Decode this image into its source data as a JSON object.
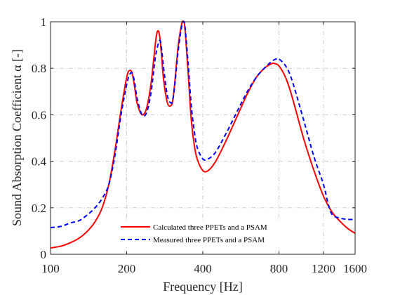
{
  "chart_data": {
    "type": "line",
    "title": "",
    "xlabel": "Frequency [Hz]",
    "ylabel": "Sound Absorption Coefficient α [-]",
    "xscale": "log",
    "xlim": [
      100,
      1600
    ],
    "ylim": [
      0,
      1
    ],
    "xticks": [
      100,
      200,
      400,
      800,
      1200,
      1600
    ],
    "xtick_labels": [
      "100",
      "200",
      "400",
      "800",
      "1200",
      "1600"
    ],
    "yticks": [
      0,
      0.2,
      0.4,
      0.6,
      0.8,
      1
    ],
    "ytick_labels": [
      "0",
      "0.2",
      "0.4",
      "0.6",
      "0.8",
      "1"
    ],
    "grid": true,
    "legend_position": "bottom-center",
    "series": [
      {
        "name": "Calculated three PPETs and a PSAM",
        "color": "#ff0000",
        "style": "solid",
        "x": [
          100,
          110,
          120,
          130,
          140,
          150,
          160,
          170,
          180,
          190,
          200,
          205,
          210,
          215,
          220,
          230,
          240,
          250,
          260,
          265,
          270,
          275,
          280,
          290,
          300,
          305,
          310,
          320,
          330,
          335,
          340,
          350,
          360,
          370,
          380,
          400,
          420,
          450,
          500,
          550,
          600,
          650,
          700,
          750,
          770,
          800,
          850,
          900,
          1000,
          1100,
          1200,
          1300,
          1400,
          1500,
          1600
        ],
        "y": [
          0.027,
          0.035,
          0.05,
          0.07,
          0.1,
          0.14,
          0.2,
          0.3,
          0.45,
          0.62,
          0.76,
          0.79,
          0.78,
          0.72,
          0.65,
          0.6,
          0.63,
          0.74,
          0.91,
          0.96,
          0.94,
          0.85,
          0.75,
          0.65,
          0.64,
          0.67,
          0.74,
          0.9,
          0.99,
          1.0,
          0.97,
          0.78,
          0.58,
          0.47,
          0.41,
          0.36,
          0.36,
          0.4,
          0.5,
          0.6,
          0.69,
          0.76,
          0.8,
          0.82,
          0.82,
          0.81,
          0.76,
          0.68,
          0.5,
          0.36,
          0.25,
          0.18,
          0.14,
          0.11,
          0.09
        ]
      },
      {
        "name": "Measured three PPETs and a PSAM",
        "color": "#0000ff",
        "style": "dashed",
        "x": [
          100,
          110,
          120,
          130,
          140,
          150,
          160,
          170,
          180,
          190,
          200,
          205,
          210,
          215,
          220,
          230,
          240,
          250,
          260,
          270,
          275,
          280,
          290,
          300,
          305,
          310,
          320,
          330,
          335,
          340,
          350,
          360,
          370,
          380,
          400,
          420,
          450,
          500,
          550,
          600,
          650,
          700,
          750,
          780,
          800,
          850,
          900,
          1000,
          1100,
          1200,
          1250,
          1300,
          1400,
          1500,
          1600
        ],
        "y": [
          0.115,
          0.12,
          0.135,
          0.145,
          0.17,
          0.2,
          0.24,
          0.3,
          0.43,
          0.6,
          0.73,
          0.77,
          0.78,
          0.74,
          0.67,
          0.6,
          0.61,
          0.7,
          0.85,
          0.92,
          0.88,
          0.8,
          0.68,
          0.65,
          0.67,
          0.73,
          0.88,
          0.98,
          1.0,
          0.98,
          0.82,
          0.64,
          0.53,
          0.46,
          0.41,
          0.41,
          0.44,
          0.53,
          0.62,
          0.7,
          0.76,
          0.8,
          0.83,
          0.84,
          0.84,
          0.81,
          0.75,
          0.58,
          0.42,
          0.3,
          0.22,
          0.17,
          0.155,
          0.15,
          0.15
        ]
      }
    ]
  }
}
